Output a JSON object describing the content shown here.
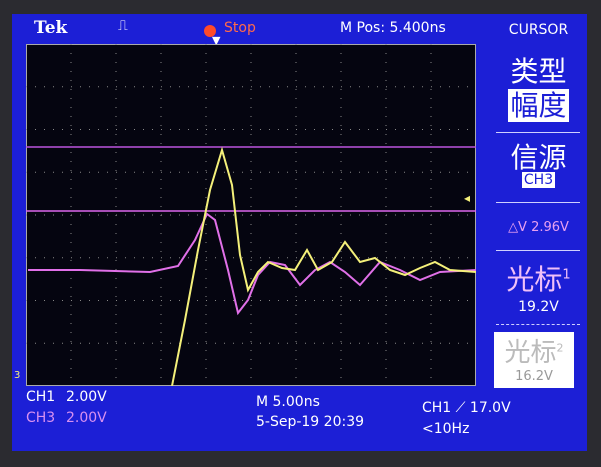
{
  "header": {
    "brand": "Tek",
    "acq_state": "Stop",
    "position": "M Pos: 5.400ns",
    "menu_title": "CURSOR"
  },
  "side_menu": {
    "type_label": "类型",
    "type_value": "幅度",
    "source_label": "信源",
    "source_value": "CH3",
    "delta": "△V 2.96V",
    "cursor1_label": "光标",
    "cursor1_index": "1",
    "cursor1_value": "19.2V",
    "cursor2_label": "光标",
    "cursor2_index": "2",
    "cursor2_value": "16.2V"
  },
  "footer": {
    "ch1": "CH1",
    "ch1_scale": "2.00V",
    "ch3": "CH3",
    "ch3_scale": "2.00V",
    "timebase": "M 5.00ns",
    "datetime": "5-Sep-19 20:39",
    "trigger": "CH1 ⟋ 17.0V",
    "frequency": "<10Hz"
  },
  "marker": {
    "ground_ch3": "3"
  },
  "colors": {
    "ch1": "#f4f07a",
    "ch3": "#e070e8",
    "screen": "#1c1fd6",
    "stop": "#ff4a2a"
  }
}
